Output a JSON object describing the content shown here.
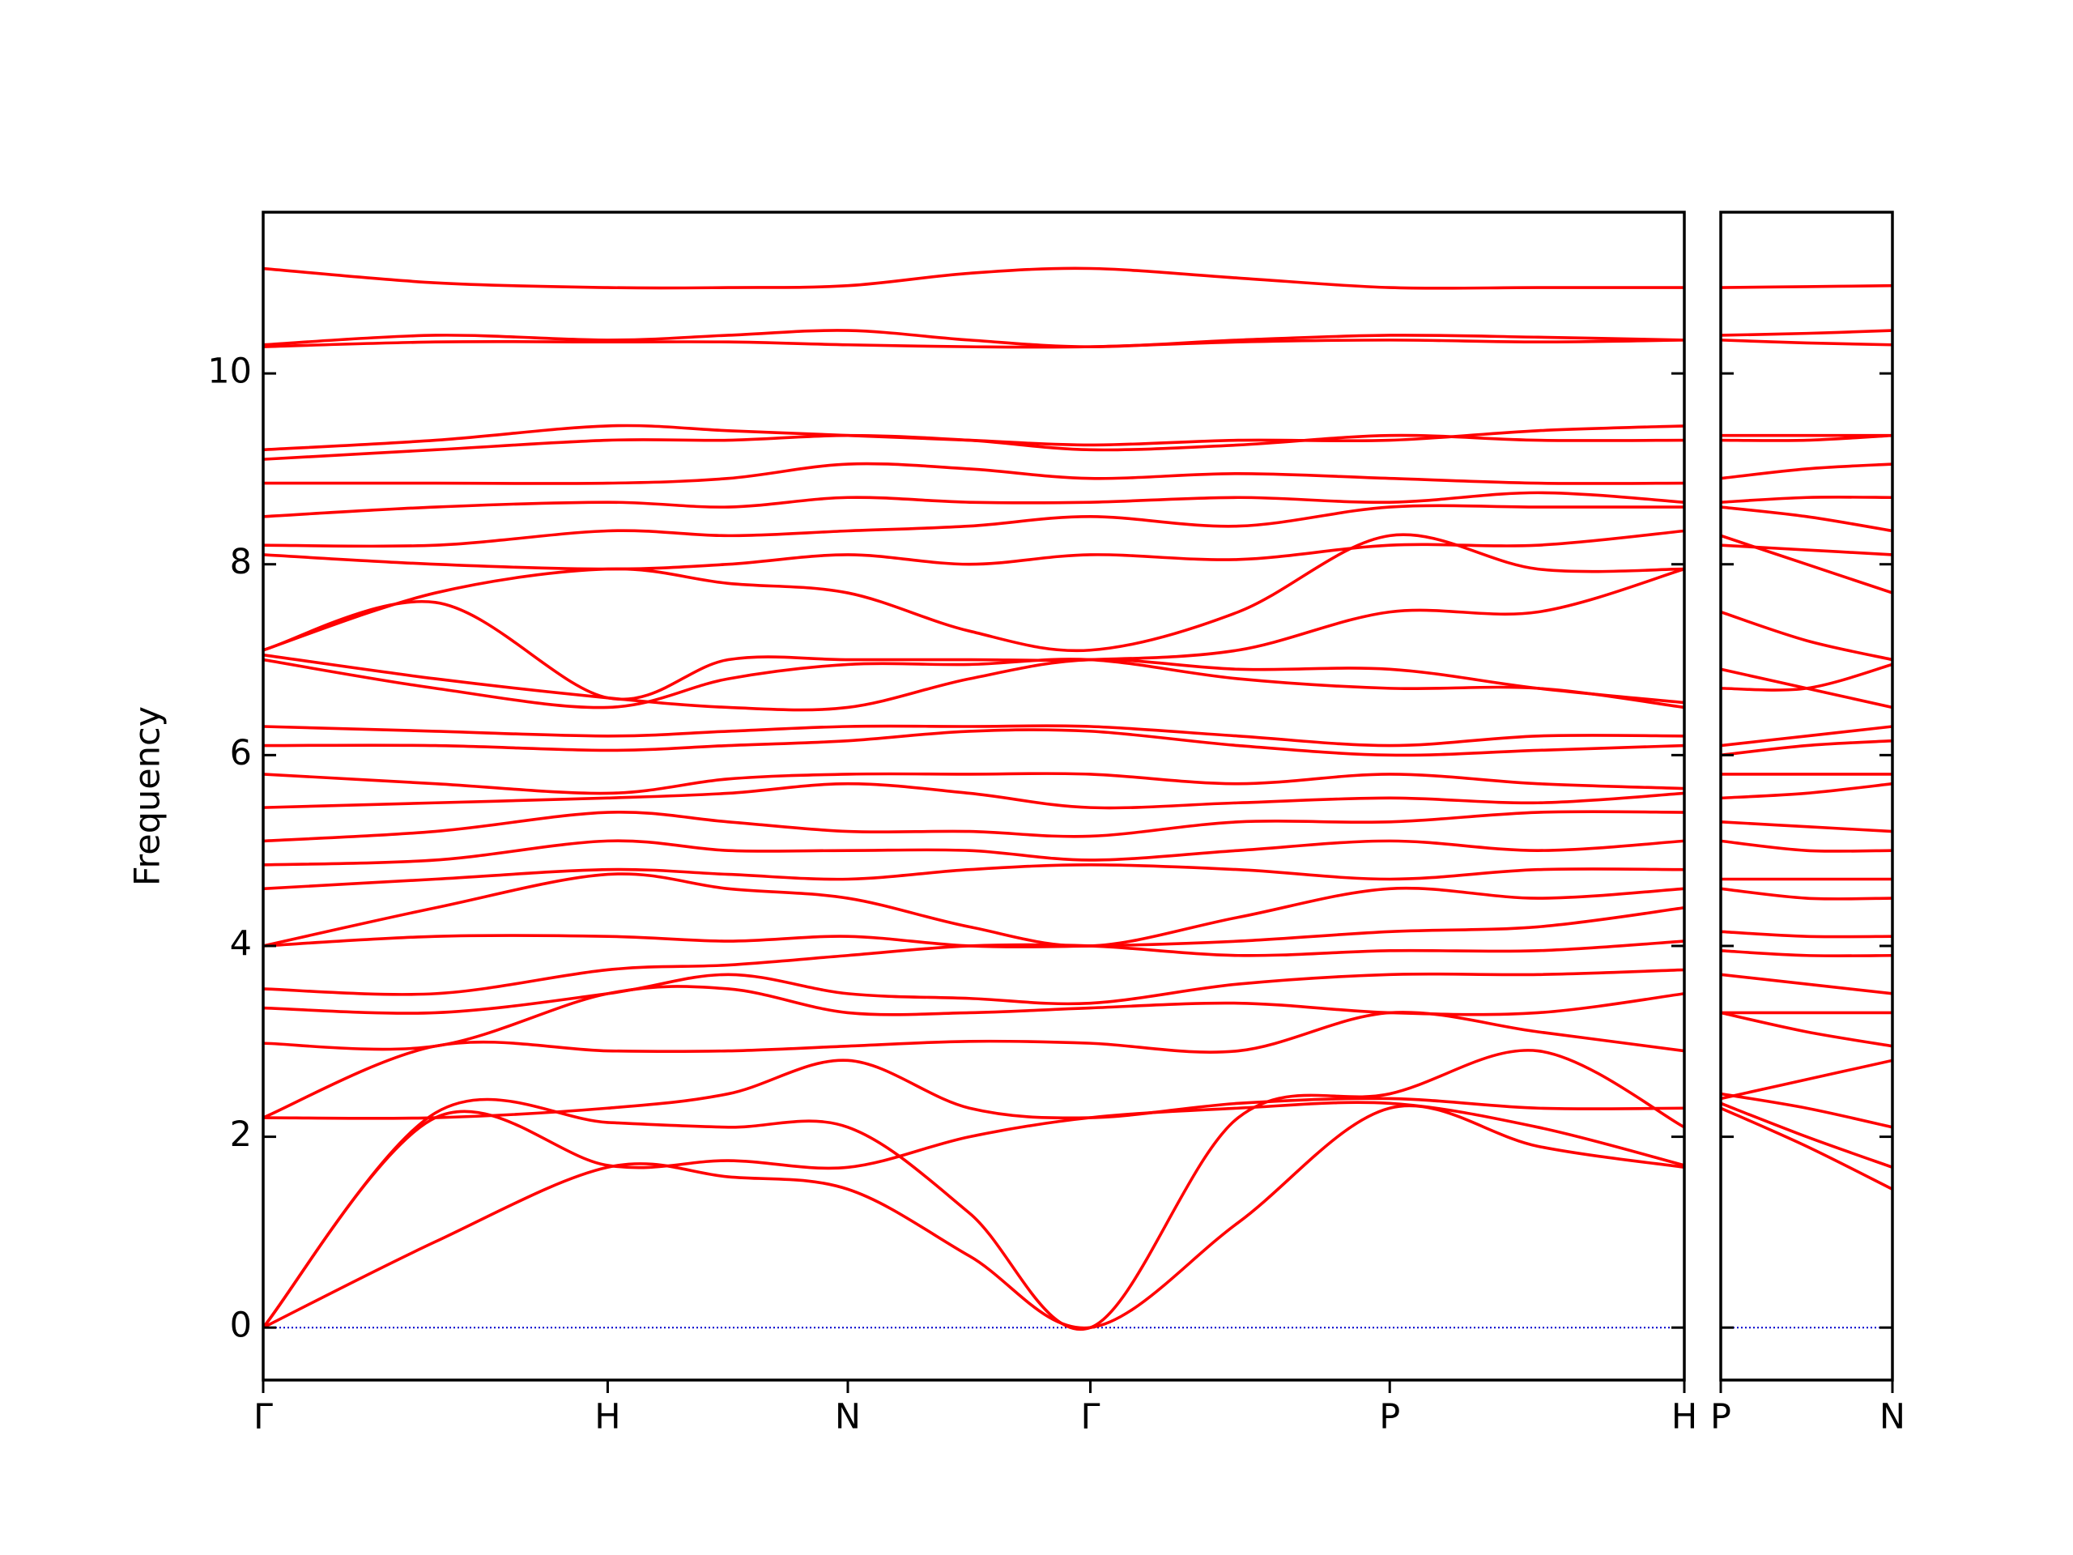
{
  "chart_data": [
    {
      "type": "line",
      "ylabel": "Frequency",
      "color": "#ff0000",
      "x": [
        0,
        0.5,
        1,
        1.35,
        1.697,
        2.05,
        2.401,
        2.83,
        3.27,
        3.7,
        4.125
      ],
      "xlim": [
        0,
        4.125
      ],
      "xticks": [
        {
          "value": 0,
          "label": "Γ"
        },
        {
          "value": 1,
          "label": "H"
        },
        {
          "value": 1.697,
          "label": "N"
        },
        {
          "value": 2.401,
          "label": "Γ"
        },
        {
          "value": 3.27,
          "label": "P"
        },
        {
          "value": 4.125,
          "label": "H"
        }
      ],
      "ylim": [
        -0.55,
        11.69
      ],
      "yticks": [
        0,
        2,
        4,
        6,
        8,
        10
      ],
      "hline": 0,
      "hline_color": "#0000cc",
      "series": [
        {
          "values": [
            0,
            0.9,
            1.68,
            1.58,
            1.45,
            0.75,
            0,
            1.1,
            2.3,
            1.9,
            1.68
          ]
        },
        {
          "values": [
            0,
            2.2,
            1.7,
            1.75,
            1.68,
            2.0,
            2.2,
            2.3,
            2.35,
            2.1,
            1.7
          ]
        },
        {
          "values": [
            0,
            2.25,
            2.15,
            2.1,
            2.1,
            1.2,
            0,
            2.2,
            2.45,
            2.9,
            2.1
          ]
        },
        {
          "values": [
            2.2,
            2.2,
            2.3,
            2.45,
            2.8,
            2.3,
            2.2,
            2.35,
            2.4,
            2.3,
            2.3
          ]
        },
        {
          "values": [
            2.2,
            2.95,
            2.9,
            2.9,
            2.95,
            3.0,
            2.98,
            2.9,
            3.3,
            3.1,
            2.9
          ]
        },
        {
          "values": [
            2.98,
            2.95,
            3.5,
            3.55,
            3.3,
            3.3,
            3.35,
            3.4,
            3.3,
            3.3,
            3.5
          ]
        },
        {
          "values": [
            3.35,
            3.3,
            3.5,
            3.7,
            3.5,
            3.45,
            3.4,
            3.6,
            3.7,
            3.7,
            3.75
          ]
        },
        {
          "values": [
            3.55,
            3.5,
            3.75,
            3.8,
            3.9,
            4.0,
            4.0,
            3.9,
            3.95,
            3.95,
            4.05
          ]
        },
        {
          "values": [
            4.0,
            4.1,
            4.1,
            4.05,
            4.1,
            4.0,
            4.0,
            4.05,
            4.15,
            4.2,
            4.4
          ]
        },
        {
          "values": [
            4.0,
            4.4,
            4.75,
            4.6,
            4.5,
            4.2,
            4.0,
            4.3,
            4.6,
            4.5,
            4.6
          ]
        },
        {
          "values": [
            4.6,
            4.7,
            4.8,
            4.75,
            4.7,
            4.8,
            4.85,
            4.8,
            4.7,
            4.8,
            4.8
          ]
        },
        {
          "values": [
            4.85,
            4.9,
            5.1,
            5.0,
            5.0,
            5.0,
            4.9,
            5.0,
            5.1,
            5.0,
            5.1
          ]
        },
        {
          "values": [
            5.1,
            5.2,
            5.4,
            5.3,
            5.2,
            5.2,
            5.15,
            5.3,
            5.3,
            5.4,
            5.4
          ]
        },
        {
          "values": [
            5.45,
            5.5,
            5.55,
            5.6,
            5.7,
            5.6,
            5.45,
            5.5,
            5.55,
            5.5,
            5.6
          ]
        },
        {
          "values": [
            5.8,
            5.7,
            5.6,
            5.75,
            5.8,
            5.8,
            5.8,
            5.7,
            5.8,
            5.7,
            5.65
          ]
        },
        {
          "values": [
            6.1,
            6.1,
            6.05,
            6.1,
            6.15,
            6.25,
            6.25,
            6.1,
            6.0,
            6.05,
            6.1
          ]
        },
        {
          "values": [
            6.3,
            6.25,
            6.2,
            6.25,
            6.3,
            6.3,
            6.3,
            6.2,
            6.1,
            6.2,
            6.2
          ]
        },
        {
          "values": [
            7.0,
            6.7,
            6.5,
            6.8,
            6.95,
            6.95,
            7.0,
            6.8,
            6.7,
            6.7,
            6.5
          ]
        },
        {
          "values": [
            7.05,
            6.8,
            6.6,
            6.5,
            6.5,
            6.8,
            7.0,
            6.9,
            6.9,
            6.7,
            6.55
          ]
        },
        {
          "values": [
            7.1,
            7.6,
            6.6,
            7.0,
            7.0,
            7.0,
            7.0,
            7.1,
            7.5,
            7.5,
            7.95
          ]
        },
        {
          "values": [
            7.1,
            7.7,
            7.95,
            7.8,
            7.7,
            7.3,
            7.1,
            7.5,
            8.3,
            7.95,
            7.95
          ]
        },
        {
          "values": [
            8.1,
            8.0,
            7.95,
            8.0,
            8.1,
            8.0,
            8.1,
            8.05,
            8.2,
            8.2,
            8.35
          ]
        },
        {
          "values": [
            8.2,
            8.2,
            8.35,
            8.3,
            8.35,
            8.4,
            8.5,
            8.4,
            8.6,
            8.6,
            8.6
          ]
        },
        {
          "values": [
            8.5,
            8.6,
            8.65,
            8.6,
            8.7,
            8.65,
            8.65,
            8.7,
            8.65,
            8.75,
            8.65
          ]
        },
        {
          "values": [
            8.85,
            8.85,
            8.85,
            8.9,
            9.05,
            9.0,
            8.9,
            8.95,
            8.9,
            8.85,
            8.85
          ]
        },
        {
          "values": [
            9.1,
            9.2,
            9.3,
            9.3,
            9.35,
            9.3,
            9.2,
            9.25,
            9.35,
            9.3,
            9.3
          ]
        },
        {
          "values": [
            9.2,
            9.3,
            9.45,
            9.4,
            9.35,
            9.3,
            9.25,
            9.3,
            9.3,
            9.4,
            9.45
          ]
        },
        {
          "values": [
            10.28,
            10.33,
            10.33,
            10.33,
            10.3,
            10.28,
            10.28,
            10.33,
            10.35,
            10.33,
            10.35
          ]
        },
        {
          "values": [
            10.3,
            10.4,
            10.35,
            10.4,
            10.45,
            10.35,
            10.28,
            10.35,
            10.4,
            10.38,
            10.35
          ]
        },
        {
          "values": [
            11.1,
            10.95,
            10.9,
            10.9,
            10.92,
            11.05,
            11.1,
            11.0,
            10.9,
            10.9,
            10.9
          ]
        }
      ]
    },
    {
      "type": "line",
      "color": "#ff0000",
      "x": [
        0,
        0.25,
        0.5
      ],
      "xlim": [
        0,
        0.5
      ],
      "xticks": [
        {
          "value": 0,
          "label": "P"
        },
        {
          "value": 0.5,
          "label": "N"
        }
      ],
      "ylim": [
        -0.55,
        11.69
      ],
      "yticks": [
        0,
        2,
        4,
        6,
        8,
        10
      ],
      "hline": 0,
      "hline_color": "#0000cc",
      "series": [
        {
          "values": [
            2.3,
            1.9,
            1.45
          ]
        },
        {
          "values": [
            2.35,
            2.0,
            1.68
          ]
        },
        {
          "values": [
            2.45,
            2.3,
            2.1
          ]
        },
        {
          "values": [
            2.4,
            2.6,
            2.8
          ]
        },
        {
          "values": [
            3.3,
            3.1,
            2.95
          ]
        },
        {
          "values": [
            3.3,
            3.3,
            3.3
          ]
        },
        {
          "values": [
            3.7,
            3.6,
            3.5
          ]
        },
        {
          "values": [
            3.95,
            3.9,
            3.9
          ]
        },
        {
          "values": [
            4.15,
            4.1,
            4.1
          ]
        },
        {
          "values": [
            4.6,
            4.5,
            4.5
          ]
        },
        {
          "values": [
            4.7,
            4.7,
            4.7
          ]
        },
        {
          "values": [
            5.1,
            5.0,
            5.0
          ]
        },
        {
          "values": [
            5.3,
            5.25,
            5.2
          ]
        },
        {
          "values": [
            5.55,
            5.6,
            5.7
          ]
        },
        {
          "values": [
            5.8,
            5.8,
            5.8
          ]
        },
        {
          "values": [
            6.0,
            6.1,
            6.15
          ]
        },
        {
          "values": [
            6.1,
            6.2,
            6.3
          ]
        },
        {
          "values": [
            6.7,
            6.7,
            6.95
          ]
        },
        {
          "values": [
            6.9,
            6.7,
            6.5
          ]
        },
        {
          "values": [
            7.5,
            7.2,
            7.0
          ]
        },
        {
          "values": [
            8.3,
            8.0,
            7.7
          ]
        },
        {
          "values": [
            8.2,
            8.15,
            8.1
          ]
        },
        {
          "values": [
            8.6,
            8.5,
            8.35
          ]
        },
        {
          "values": [
            8.65,
            8.7,
            8.7
          ]
        },
        {
          "values": [
            8.9,
            9.0,
            9.05
          ]
        },
        {
          "values": [
            9.35,
            9.35,
            9.35
          ]
        },
        {
          "values": [
            9.3,
            9.3,
            9.35
          ]
        },
        {
          "values": [
            10.35,
            10.32,
            10.3
          ]
        },
        {
          "values": [
            10.4,
            10.42,
            10.45
          ]
        },
        {
          "values": [
            10.9,
            10.91,
            10.92
          ]
        }
      ]
    }
  ]
}
